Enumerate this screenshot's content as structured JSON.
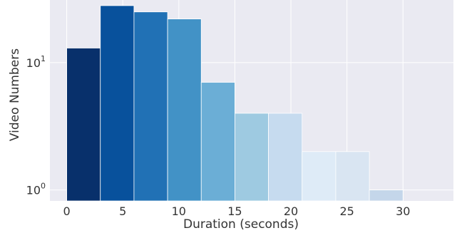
{
  "chart_data": {
    "type": "bar",
    "xlabel": "Duration (seconds)",
    "ylabel": "Video Numbers",
    "y_scale": "log",
    "ylim": [
      0.82,
      31
    ],
    "xlim": [
      -1.5,
      34.5
    ],
    "grid": true,
    "bin_width": 3,
    "x_ticks": [
      0,
      5,
      10,
      15,
      20,
      25,
      30
    ],
    "x_tick_labels": [
      "0",
      "5",
      "10",
      "15",
      "20",
      "25",
      "30"
    ],
    "y_ticks": [
      {
        "value": 1,
        "base": "10",
        "exp": "0"
      },
      {
        "value": 10,
        "base": "10",
        "exp": "1"
      }
    ],
    "bins": [
      {
        "start": 0,
        "end": 3,
        "count": 13,
        "color": "#08306b"
      },
      {
        "start": 3,
        "end": 6,
        "count": 28,
        "color": "#08519c"
      },
      {
        "start": 6,
        "end": 9,
        "count": 25,
        "color": "#2171b5"
      },
      {
        "start": 9,
        "end": 12,
        "count": 22,
        "color": "#4292c6"
      },
      {
        "start": 12,
        "end": 15,
        "count": 7,
        "color": "#6baed6"
      },
      {
        "start": 15,
        "end": 18,
        "count": 4,
        "color": "#9ecae1"
      },
      {
        "start": 18,
        "end": 21,
        "count": 4,
        "color": "#c6dbef"
      },
      {
        "start": 21,
        "end": 24,
        "count": 2,
        "color": "#deebf7"
      },
      {
        "start": 24,
        "end": 27,
        "count": 2,
        "color": "#d9e5f2"
      },
      {
        "start": 27,
        "end": 30,
        "count": 1,
        "color": "#c4d6ea"
      }
    ],
    "colors": {
      "plot_background": "#eaeaf2",
      "grid": "#ffffff"
    }
  }
}
